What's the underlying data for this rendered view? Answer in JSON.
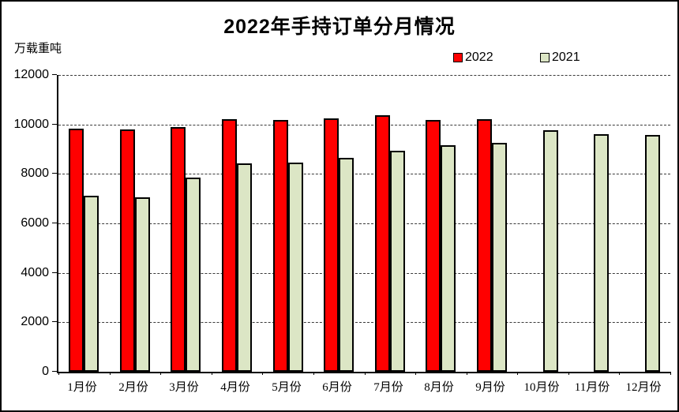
{
  "window": {
    "background": "#FFFFFF",
    "border_color": "#000000"
  },
  "chart_data": {
    "type": "bar",
    "title": "2022年手持订单分月情况",
    "unit_label": "万载重吨",
    "categories": [
      "1月份",
      "2月份",
      "3月份",
      "4月份",
      "5月份",
      "6月份",
      "7月份",
      "8月份",
      "9月份",
      "10月份",
      "11月份",
      "12月份"
    ],
    "series": [
      {
        "name": "2022",
        "color": "#FF0000",
        "values": [
          9840,
          9790,
          9900,
          10210,
          10170,
          10260,
          10360,
          10190,
          10220,
          null,
          null,
          null
        ]
      },
      {
        "name": "2021",
        "color": "#DCE6C5",
        "values": [
          7110,
          7040,
          7840,
          8430,
          8470,
          8650,
          8950,
          9150,
          9240,
          9780,
          9620,
          9570
        ]
      }
    ],
    "ylim": [
      0,
      12000
    ],
    "ytick_step": 2000,
    "ytick_labels": [
      "0",
      "2000",
      "4000",
      "6000",
      "8000",
      "10000",
      "12000"
    ],
    "grid": "horizontal-dashed",
    "legend_position": "top-right"
  }
}
